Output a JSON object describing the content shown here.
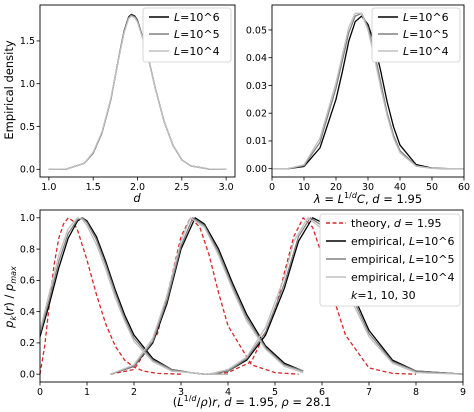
{
  "chart_data": [
    {
      "type": "line",
      "xlabel": "d",
      "ylabel": "Empirical density",
      "xlim": [
        0.9,
        3.1
      ],
      "ylim": [
        -0.09,
        1.92
      ],
      "xticks": [
        "1.0",
        "1.5",
        "2.0",
        "2.5",
        "3.0"
      ],
      "yticks": [
        "0.0",
        "0.5",
        "1.0",
        "1.5"
      ],
      "legend_position": "top-right",
      "series": [
        {
          "name": "L=10^6",
          "color": "#000000",
          "x": [
            1.0,
            1.2,
            1.4,
            1.5,
            1.6,
            1.7,
            1.8,
            1.85,
            1.9,
            1.93,
            1.97,
            2.0,
            2.1,
            2.2,
            2.3,
            2.4,
            2.5,
            2.6,
            2.8,
            3.0
          ],
          "y": [
            0.0,
            0.003,
            0.07,
            0.19,
            0.43,
            0.82,
            1.37,
            1.62,
            1.78,
            1.81,
            1.79,
            1.74,
            1.4,
            0.95,
            0.56,
            0.28,
            0.11,
            0.04,
            0.003,
            0.0
          ]
        },
        {
          "name": "L=10^5",
          "color": "#808080",
          "x": [
            1.0,
            1.2,
            1.4,
            1.5,
            1.6,
            1.7,
            1.8,
            1.85,
            1.9,
            1.93,
            1.97,
            2.0,
            2.1,
            2.2,
            2.3,
            2.4,
            2.5,
            2.6,
            2.8,
            3.0
          ],
          "y": [
            0.0,
            0.003,
            0.07,
            0.19,
            0.43,
            0.82,
            1.36,
            1.61,
            1.77,
            1.8,
            1.78,
            1.73,
            1.4,
            0.95,
            0.56,
            0.28,
            0.11,
            0.04,
            0.003,
            0.0
          ]
        },
        {
          "name": "L=10^4",
          "color": "#c0c0c0",
          "x": [
            1.0,
            1.2,
            1.4,
            1.5,
            1.6,
            1.7,
            1.8,
            1.85,
            1.9,
            1.93,
            1.97,
            2.0,
            2.1,
            2.2,
            2.3,
            2.4,
            2.5,
            2.6,
            2.8,
            3.0
          ],
          "y": [
            0.0,
            0.003,
            0.07,
            0.2,
            0.44,
            0.83,
            1.36,
            1.6,
            1.76,
            1.79,
            1.77,
            1.72,
            1.39,
            0.95,
            0.56,
            0.28,
            0.11,
            0.04,
            0.003,
            0.0
          ]
        }
      ]
    },
    {
      "type": "line",
      "xlabel": "λ = L^{1/d}C, d = 1.95",
      "xlim": [
        0,
        60
      ],
      "ylim": [
        -0.003,
        0.059
      ],
      "xticks": [
        "0",
        "10",
        "20",
        "30",
        "40",
        "50",
        "60"
      ],
      "yticks": [
        "0.00",
        "0.01",
        "0.02",
        "0.03",
        "0.04",
        "0.05"
      ],
      "legend_position": "top-right",
      "series": [
        {
          "name": "L=10^6",
          "color": "#000000",
          "x": [
            0,
            5,
            10,
            15,
            20,
            22,
            24,
            26,
            28,
            30,
            32,
            34,
            36,
            38,
            40,
            45,
            50,
            55,
            60
          ],
          "y": [
            0.0,
            0.0,
            0.0008,
            0.0075,
            0.025,
            0.035,
            0.046,
            0.053,
            0.055,
            0.052,
            0.045,
            0.035,
            0.024,
            0.015,
            0.0085,
            0.0015,
            0.0002,
            0.0,
            0.0
          ]
        },
        {
          "name": "L=10^5",
          "color": "#808080",
          "x": [
            0,
            5,
            10,
            15,
            20,
            22,
            24,
            26,
            28,
            30,
            32,
            34,
            36,
            38,
            40,
            45,
            50,
            55,
            60
          ],
          "y": [
            0.0,
            0.0,
            0.0011,
            0.0095,
            0.029,
            0.039,
            0.049,
            0.055,
            0.056,
            0.051,
            0.042,
            0.031,
            0.02,
            0.012,
            0.0065,
            0.0011,
            0.0001,
            0.0,
            0.0
          ]
        },
        {
          "name": "L=10^4",
          "color": "#c0c0c0",
          "x": [
            0,
            5,
            10,
            15,
            20,
            22,
            24,
            26,
            28,
            30,
            32,
            34,
            36,
            38,
            40,
            45,
            50,
            55,
            60
          ],
          "y": [
            0.0,
            0.0,
            0.0014,
            0.011,
            0.031,
            0.041,
            0.051,
            0.056,
            0.056,
            0.05,
            0.04,
            0.029,
            0.019,
            0.011,
            0.0058,
            0.0009,
            0.0001,
            0.0,
            0.0
          ]
        }
      ]
    },
    {
      "type": "line",
      "xlabel": "(L^{1/d}/ρ)r, d = 1.95, ρ = 28.1",
      "ylabel": "p_k(r) / p_max",
      "xlim": [
        0,
        9
      ],
      "ylim": [
        -0.05,
        1.05
      ],
      "xticks": [
        "0",
        "1",
        "2",
        "3",
        "4",
        "5",
        "6",
        "7",
        "8",
        "9"
      ],
      "yticks": [
        "0.0",
        "0.2",
        "0.4",
        "0.6",
        "0.8",
        "1.0"
      ],
      "legend_position": "top-right",
      "series": [
        {
          "name": "theory, d = 1.95",
          "color": "#d62728",
          "dashed": true,
          "x": [
            0,
            0.1,
            0.2,
            0.3,
            0.4,
            0.5,
            0.6,
            0.7,
            0.8,
            1.0,
            1.2,
            1.4,
            1.6,
            1.8,
            2.0,
            2.2,
            2.5,
            3.0
          ],
          "y": [
            0,
            0.18,
            0.45,
            0.7,
            0.87,
            0.96,
            1.0,
            0.98,
            0.92,
            0.73,
            0.51,
            0.32,
            0.18,
            0.09,
            0.045,
            0.02,
            0.005,
            0.0
          ],
          "x2": [
            1.5,
            2.0,
            2.5,
            2.8,
            3.0,
            3.2,
            3.4,
            3.6,
            3.8,
            4.0,
            4.5,
            5.0,
            5.5
          ],
          "y2": [
            0.0,
            0.03,
            0.26,
            0.62,
            0.88,
            1.0,
            0.94,
            0.76,
            0.52,
            0.31,
            0.06,
            0.01,
            0.0
          ],
          "x3": [
            3.5,
            4.0,
            4.5,
            5.0,
            5.2,
            5.4,
            5.6,
            5.8,
            6.0,
            6.2,
            6.5,
            7.0,
            7.5,
            8.0
          ],
          "y3": [
            0.0,
            0.01,
            0.08,
            0.4,
            0.65,
            0.88,
            1.0,
            0.94,
            0.76,
            0.53,
            0.25,
            0.04,
            0.005,
            0.0
          ]
        },
        {
          "name": "empirical, L=10^6",
          "color": "#000000",
          "x": [
            0,
            0.2,
            0.4,
            0.6,
            0.8,
            0.9,
            1.0,
            1.2,
            1.4,
            1.6,
            1.8,
            2.0,
            2.4,
            2.8,
            3.2,
            3.5,
            4.0
          ],
          "y": [
            0.24,
            0.45,
            0.68,
            0.87,
            0.98,
            1.0,
            0.98,
            0.88,
            0.72,
            0.54,
            0.38,
            0.25,
            0.1,
            0.03,
            0.01,
            0.0,
            0.0
          ],
          "x2": [
            1.5,
            2.0,
            2.4,
            2.7,
            3.0,
            3.3,
            3.5,
            3.8,
            4.1,
            4.4,
            4.8,
            5.2,
            5.6
          ],
          "y2": [
            0.0,
            0.05,
            0.2,
            0.45,
            0.8,
            1.0,
            0.96,
            0.8,
            0.58,
            0.38,
            0.18,
            0.07,
            0.02
          ],
          "x3": [
            3.6,
            4.0,
            4.4,
            4.8,
            5.2,
            5.5,
            5.8,
            6.0,
            6.3,
            6.6,
            7.0,
            7.5,
            8.0,
            9.0
          ],
          "y3": [
            0.0,
            0.02,
            0.09,
            0.25,
            0.55,
            0.85,
            1.0,
            0.97,
            0.8,
            0.55,
            0.28,
            0.09,
            0.02,
            0.0
          ]
        },
        {
          "name": "empirical, L=10^5",
          "color": "#808080",
          "x": [
            0,
            0.2,
            0.4,
            0.6,
            0.8,
            0.9,
            1.0,
            1.2,
            1.4,
            1.6,
            1.8,
            2.0,
            2.4,
            2.8,
            3.2,
            3.5,
            4.0
          ],
          "y": [
            0.26,
            0.48,
            0.72,
            0.9,
            0.99,
            1.0,
            0.97,
            0.86,
            0.7,
            0.52,
            0.36,
            0.23,
            0.09,
            0.03,
            0.01,
            0.0,
            0.0
          ],
          "x2": [
            1.5,
            2.0,
            2.4,
            2.7,
            3.0,
            3.25,
            3.5,
            3.8,
            4.1,
            4.4,
            4.8,
            5.2,
            5.6
          ],
          "y2": [
            0.0,
            0.05,
            0.21,
            0.47,
            0.82,
            1.0,
            0.95,
            0.78,
            0.56,
            0.36,
            0.17,
            0.06,
            0.02
          ],
          "x3": [
            3.6,
            4.0,
            4.4,
            4.8,
            5.2,
            5.5,
            5.75,
            6.0,
            6.3,
            6.6,
            7.0,
            7.5,
            8.0,
            9.0
          ],
          "y3": [
            0.0,
            0.02,
            0.1,
            0.27,
            0.58,
            0.88,
            1.0,
            0.95,
            0.77,
            0.52,
            0.26,
            0.08,
            0.02,
            0.0
          ]
        },
        {
          "name": "empirical, L=10^4",
          "color": "#c0c0c0",
          "x": [
            0,
            0.2,
            0.4,
            0.6,
            0.8,
            0.9,
            1.0,
            1.2,
            1.4,
            1.6,
            1.8,
            2.0,
            2.4,
            2.8,
            3.2,
            3.5,
            4.0
          ],
          "y": [
            0.28,
            0.52,
            0.76,
            0.93,
            1.0,
            0.99,
            0.95,
            0.83,
            0.67,
            0.49,
            0.34,
            0.21,
            0.08,
            0.02,
            0.01,
            0.0,
            0.0
          ],
          "x2": [
            1.5,
            2.0,
            2.4,
            2.7,
            3.0,
            3.2,
            3.5,
            3.8,
            4.1,
            4.4,
            4.8,
            5.2,
            5.6
          ],
          "y2": [
            0.0,
            0.06,
            0.23,
            0.5,
            0.85,
            1.0,
            0.94,
            0.76,
            0.54,
            0.34,
            0.16,
            0.05,
            0.01
          ],
          "x3": [
            3.6,
            4.0,
            4.4,
            4.8,
            5.2,
            5.4,
            5.7,
            6.0,
            6.3,
            6.6,
            7.0,
            7.5,
            8.0,
            9.0
          ],
          "y3": [
            0.0,
            0.03,
            0.11,
            0.3,
            0.62,
            0.85,
            1.0,
            0.93,
            0.74,
            0.49,
            0.24,
            0.07,
            0.01,
            0.0
          ]
        }
      ],
      "annotation": "k=1, 10, 30"
    }
  ]
}
